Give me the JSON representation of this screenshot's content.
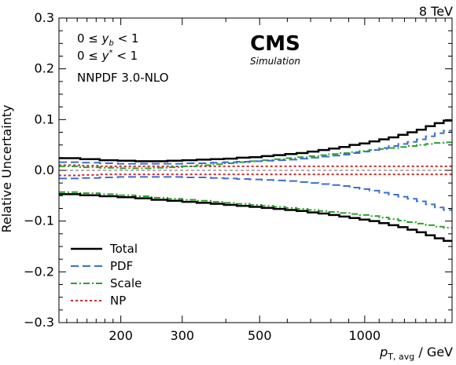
{
  "chart_data": {
    "type": "line",
    "energy_label": "8 TeV",
    "experiment": "CMS",
    "experiment_sub": "Simulation",
    "annotations": [
      "0 ≤ y_b < 1",
      "0 ≤ y* < 1",
      "NNPDF 3.0-NLO"
    ],
    "xlabel": "p_T,avg / GeV",
    "ylabel": "Relative Uncertainty",
    "x_scale": "log",
    "xlim": [
      133,
      1780
    ],
    "ylim": [
      -0.3,
      0.3
    ],
    "x_ticks": [
      200,
      300,
      500,
      1000
    ],
    "y_ticks": [
      -0.3,
      -0.2,
      -0.1,
      0.0,
      0.1,
      0.2,
      0.3
    ],
    "y_tick_labels": [
      "−0.3",
      "−0.2",
      "−0.1",
      "0.0",
      "0.1",
      "0.2",
      "0.3"
    ],
    "legend_position": "bottom-left",
    "x_edges": [
      133,
      153,
      174,
      196,
      220,
      245,
      272,
      300,
      330,
      362,
      395,
      430,
      468,
      507,
      548,
      592,
      638,
      686,
      737,
      790,
      846,
      905,
      967,
      1032,
      1101,
      1172,
      1248,
      1327,
      1410,
      1497,
      1588,
      1684,
      1780
    ],
    "series": [
      {
        "name": "Total",
        "color": "#000000",
        "style": "solid",
        "upper": [
          0.024,
          0.022,
          0.02,
          0.019,
          0.018,
          0.018,
          0.019,
          0.02,
          0.021,
          0.022,
          0.023,
          0.025,
          0.026,
          0.028,
          0.03,
          0.032,
          0.034,
          0.037,
          0.04,
          0.043,
          0.046,
          0.05,
          0.053,
          0.057,
          0.061,
          0.065,
          0.07,
          0.075,
          0.08,
          0.087,
          0.093,
          0.098
        ],
        "lower": [
          -0.047,
          -0.049,
          -0.051,
          -0.053,
          -0.055,
          -0.058,
          -0.06,
          -0.062,
          -0.064,
          -0.066,
          -0.068,
          -0.07,
          -0.072,
          -0.074,
          -0.076,
          -0.078,
          -0.08,
          -0.083,
          -0.085,
          -0.088,
          -0.091,
          -0.094,
          -0.097,
          -0.1,
          -0.104,
          -0.108,
          -0.112,
          -0.117,
          -0.122,
          -0.128,
          -0.134,
          -0.139
        ]
      },
      {
        "name": "PDF",
        "color": "#3a6fd6",
        "style": "dashed",
        "upper": [
          0.016,
          0.015,
          0.014,
          0.013,
          0.013,
          0.013,
          0.013,
          0.014,
          0.014,
          0.015,
          0.016,
          0.017,
          0.018,
          0.019,
          0.02,
          0.021,
          0.023,
          0.025,
          0.027,
          0.029,
          0.031,
          0.034,
          0.037,
          0.04,
          0.044,
          0.048,
          0.052,
          0.056,
          0.061,
          0.067,
          0.073,
          0.078
        ],
        "lower": [
          -0.016,
          -0.015,
          -0.014,
          -0.013,
          -0.013,
          -0.013,
          -0.013,
          -0.014,
          -0.014,
          -0.015,
          -0.016,
          -0.017,
          -0.018,
          -0.019,
          -0.02,
          -0.021,
          -0.023,
          -0.025,
          -0.027,
          -0.029,
          -0.031,
          -0.034,
          -0.037,
          -0.04,
          -0.044,
          -0.048,
          -0.052,
          -0.056,
          -0.061,
          -0.067,
          -0.073,
          -0.078
        ]
      },
      {
        "name": "Scale",
        "color": "#2ca02c",
        "style": "dashdot",
        "upper": [
          0.008,
          0.006,
          0.005,
          0.004,
          0.004,
          0.005,
          0.006,
          0.008,
          0.01,
          0.012,
          0.014,
          0.016,
          0.018,
          0.02,
          0.022,
          0.024,
          0.026,
          0.028,
          0.03,
          0.032,
          0.034,
          0.036,
          0.038,
          0.04,
          0.042,
          0.044,
          0.046,
          0.048,
          0.05,
          0.052,
          0.054,
          0.055
        ],
        "lower": [
          -0.043,
          -0.045,
          -0.047,
          -0.049,
          -0.051,
          -0.054,
          -0.056,
          -0.058,
          -0.06,
          -0.062,
          -0.064,
          -0.066,
          -0.068,
          -0.07,
          -0.072,
          -0.074,
          -0.076,
          -0.078,
          -0.08,
          -0.082,
          -0.084,
          -0.086,
          -0.088,
          -0.09,
          -0.093,
          -0.096,
          -0.099,
          -0.102,
          -0.105,
          -0.108,
          -0.111,
          -0.113
        ]
      },
      {
        "name": "NP",
        "color": "#d62728",
        "style": "dotted",
        "upper": [
          0.01,
          0.009,
          0.008,
          0.008,
          0.008,
          0.008,
          0.008,
          0.008,
          0.008,
          0.008,
          0.008,
          0.008,
          0.008,
          0.008,
          0.008,
          0.008,
          0.008,
          0.008,
          0.008,
          0.008,
          0.008,
          0.008,
          0.008,
          0.008,
          0.008,
          0.008,
          0.008,
          0.008,
          0.008,
          0.008,
          0.008,
          0.008
        ],
        "lower": [
          -0.01,
          -0.009,
          -0.008,
          -0.008,
          -0.008,
          -0.008,
          -0.008,
          -0.008,
          -0.008,
          -0.008,
          -0.008,
          -0.008,
          -0.008,
          -0.008,
          -0.008,
          -0.008,
          -0.008,
          -0.008,
          -0.008,
          -0.008,
          -0.008,
          -0.008,
          -0.008,
          -0.008,
          -0.008,
          -0.008,
          -0.008,
          -0.008,
          -0.008,
          -0.008,
          -0.008,
          -0.008
        ]
      }
    ]
  }
}
